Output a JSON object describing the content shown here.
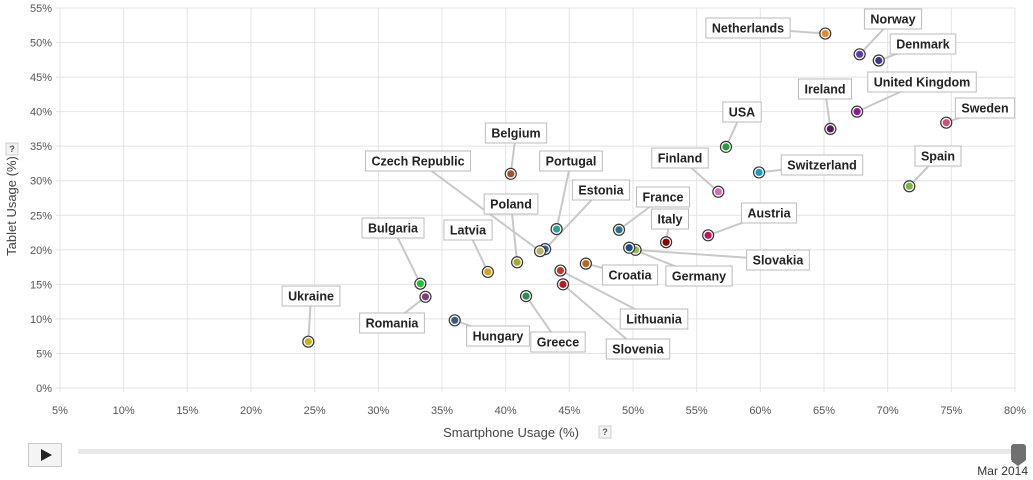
{
  "chart_data": {
    "type": "scatter",
    "xlabel": "Smartphone Usage (%)",
    "ylabel": "Tablet Usage (%)",
    "xlim": [
      5,
      80
    ],
    "ylim": [
      0,
      55
    ],
    "x_ticks": [
      "5%",
      "10%",
      "15%",
      "20%",
      "25%",
      "30%",
      "35%",
      "40%",
      "45%",
      "50%",
      "55%",
      "60%",
      "65%",
      "70%",
      "75%",
      "80%"
    ],
    "y_ticks": [
      "0%",
      "5%",
      "10%",
      "15%",
      "20%",
      "25%",
      "30%",
      "35%",
      "40%",
      "45%",
      "50%",
      "55%"
    ],
    "help_label": "?",
    "grid": true,
    "points": [
      {
        "name": "Netherlands",
        "x": 65.1,
        "y": 51.3,
        "color": "#e08a2c"
      },
      {
        "name": "Norway",
        "x": 67.8,
        "y": 48.3,
        "color": "#5a3db3"
      },
      {
        "name": "Denmark",
        "x": 69.3,
        "y": 47.4,
        "color": "#3c3c8c"
      },
      {
        "name": "United Kingdom",
        "x": 67.6,
        "y": 40.0,
        "color": "#8b1c8b"
      },
      {
        "name": "Ireland",
        "x": 65.5,
        "y": 37.5,
        "color": "#5c1a5c"
      },
      {
        "name": "Sweden",
        "x": 74.6,
        "y": 38.4,
        "color": "#d4507a"
      },
      {
        "name": "USA",
        "x": 57.3,
        "y": 34.9,
        "color": "#2c9a3c"
      },
      {
        "name": "Switzerland",
        "x": 59.9,
        "y": 31.2,
        "color": "#1a9bbf"
      },
      {
        "name": "Spain",
        "x": 71.7,
        "y": 29.2,
        "color": "#7cb342"
      },
      {
        "name": "Finland",
        "x": 56.7,
        "y": 28.4,
        "color": "#d86ab8"
      },
      {
        "name": "Belgium",
        "x": 40.4,
        "y": 31.0,
        "color": "#a0522d"
      },
      {
        "name": "France",
        "x": 48.9,
        "y": 22.9,
        "color": "#2e6f8e"
      },
      {
        "name": "Austria",
        "x": 55.9,
        "y": 22.1,
        "color": "#c2185b"
      },
      {
        "name": "Italy",
        "x": 52.6,
        "y": 21.1,
        "color": "#8b0000"
      },
      {
        "name": "Portugal",
        "x": 44.0,
        "y": 23.0,
        "color": "#26a69a"
      },
      {
        "name": "Estonia",
        "x": 43.1,
        "y": 20.1,
        "color": "#2c5fa8"
      },
      {
        "name": "Czech Republic",
        "x": 42.7,
        "y": 19.8,
        "color": "#b8b060"
      },
      {
        "name": "Poland",
        "x": 40.9,
        "y": 18.2,
        "color": "#a8a830"
      },
      {
        "name": "Latvia",
        "x": 38.6,
        "y": 16.8,
        "color": "#d4a020"
      },
      {
        "name": "Slovakia",
        "x": 50.2,
        "y": 20.0,
        "color": "#8bc34a"
      },
      {
        "name": "Germany",
        "x": 49.7,
        "y": 20.3,
        "color": "#1e4a7a"
      },
      {
        "name": "Croatia",
        "x": 46.3,
        "y": 18.0,
        "color": "#b06a20"
      },
      {
        "name": "Lithuania",
        "x": 44.3,
        "y": 17.0,
        "color": "#c0392b"
      },
      {
        "name": "Slovenia",
        "x": 44.5,
        "y": 15.0,
        "color": "#b71c1c"
      },
      {
        "name": "Greece",
        "x": 41.6,
        "y": 13.3,
        "color": "#2e8b57"
      },
      {
        "name": "Bulgaria",
        "x": 33.3,
        "y": 15.1,
        "color": "#22c030"
      },
      {
        "name": "Romania",
        "x": 33.7,
        "y": 13.2,
        "color": "#7b3f7b"
      },
      {
        "name": "Hungary",
        "x": 36.0,
        "y": 9.8,
        "color": "#3a5a78"
      },
      {
        "name": "Ukraine",
        "x": 24.5,
        "y": 6.7,
        "color": "#c8b020"
      }
    ]
  },
  "player": {
    "play_label": "Play",
    "current_date": "Mar 2014",
    "progress": 1.0
  }
}
